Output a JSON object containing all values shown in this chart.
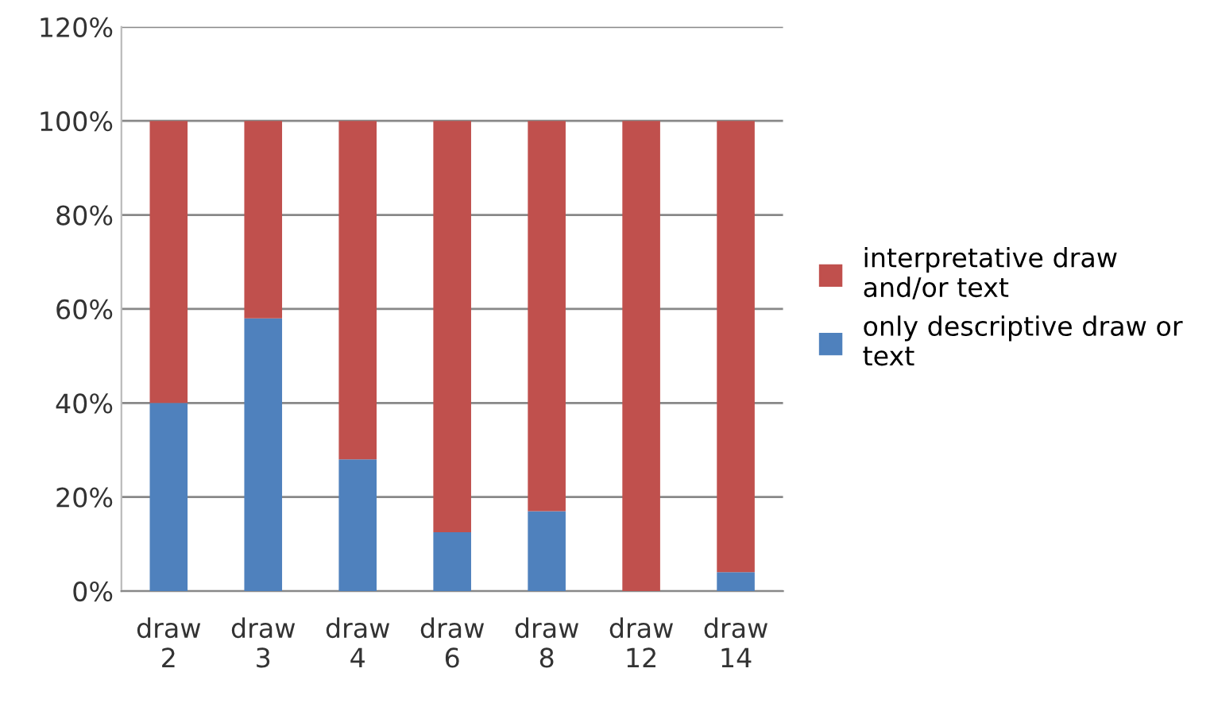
{
  "chart_data": {
    "type": "bar",
    "stacked": true,
    "categories": [
      "draw\n2",
      "draw\n3",
      "draw\n4",
      "draw\n6",
      "draw\n8",
      "draw\n12",
      "draw\n14"
    ],
    "series": [
      {
        "name": "only descriptive draw or\ntext",
        "color": "#4f81bd",
        "values": [
          40,
          58,
          28,
          12.5,
          17,
          0,
          4
        ]
      },
      {
        "name": "interpretative draw\nand/or text",
        "color": "#c0504d",
        "values": [
          60,
          42,
          72,
          87.5,
          83,
          100,
          96
        ]
      }
    ],
    "ylim": [
      0,
      120
    ],
    "yticks": [
      {
        "value": 0,
        "label": "0%"
      },
      {
        "value": 20,
        "label": "20%"
      },
      {
        "value": 40,
        "label": "40%"
      },
      {
        "value": 60,
        "label": "60%"
      },
      {
        "value": 80,
        "label": "80%"
      },
      {
        "value": 100,
        "label": "100%"
      },
      {
        "value": 120,
        "label": "120%"
      }
    ],
    "grid": "y",
    "legend": "right"
  }
}
